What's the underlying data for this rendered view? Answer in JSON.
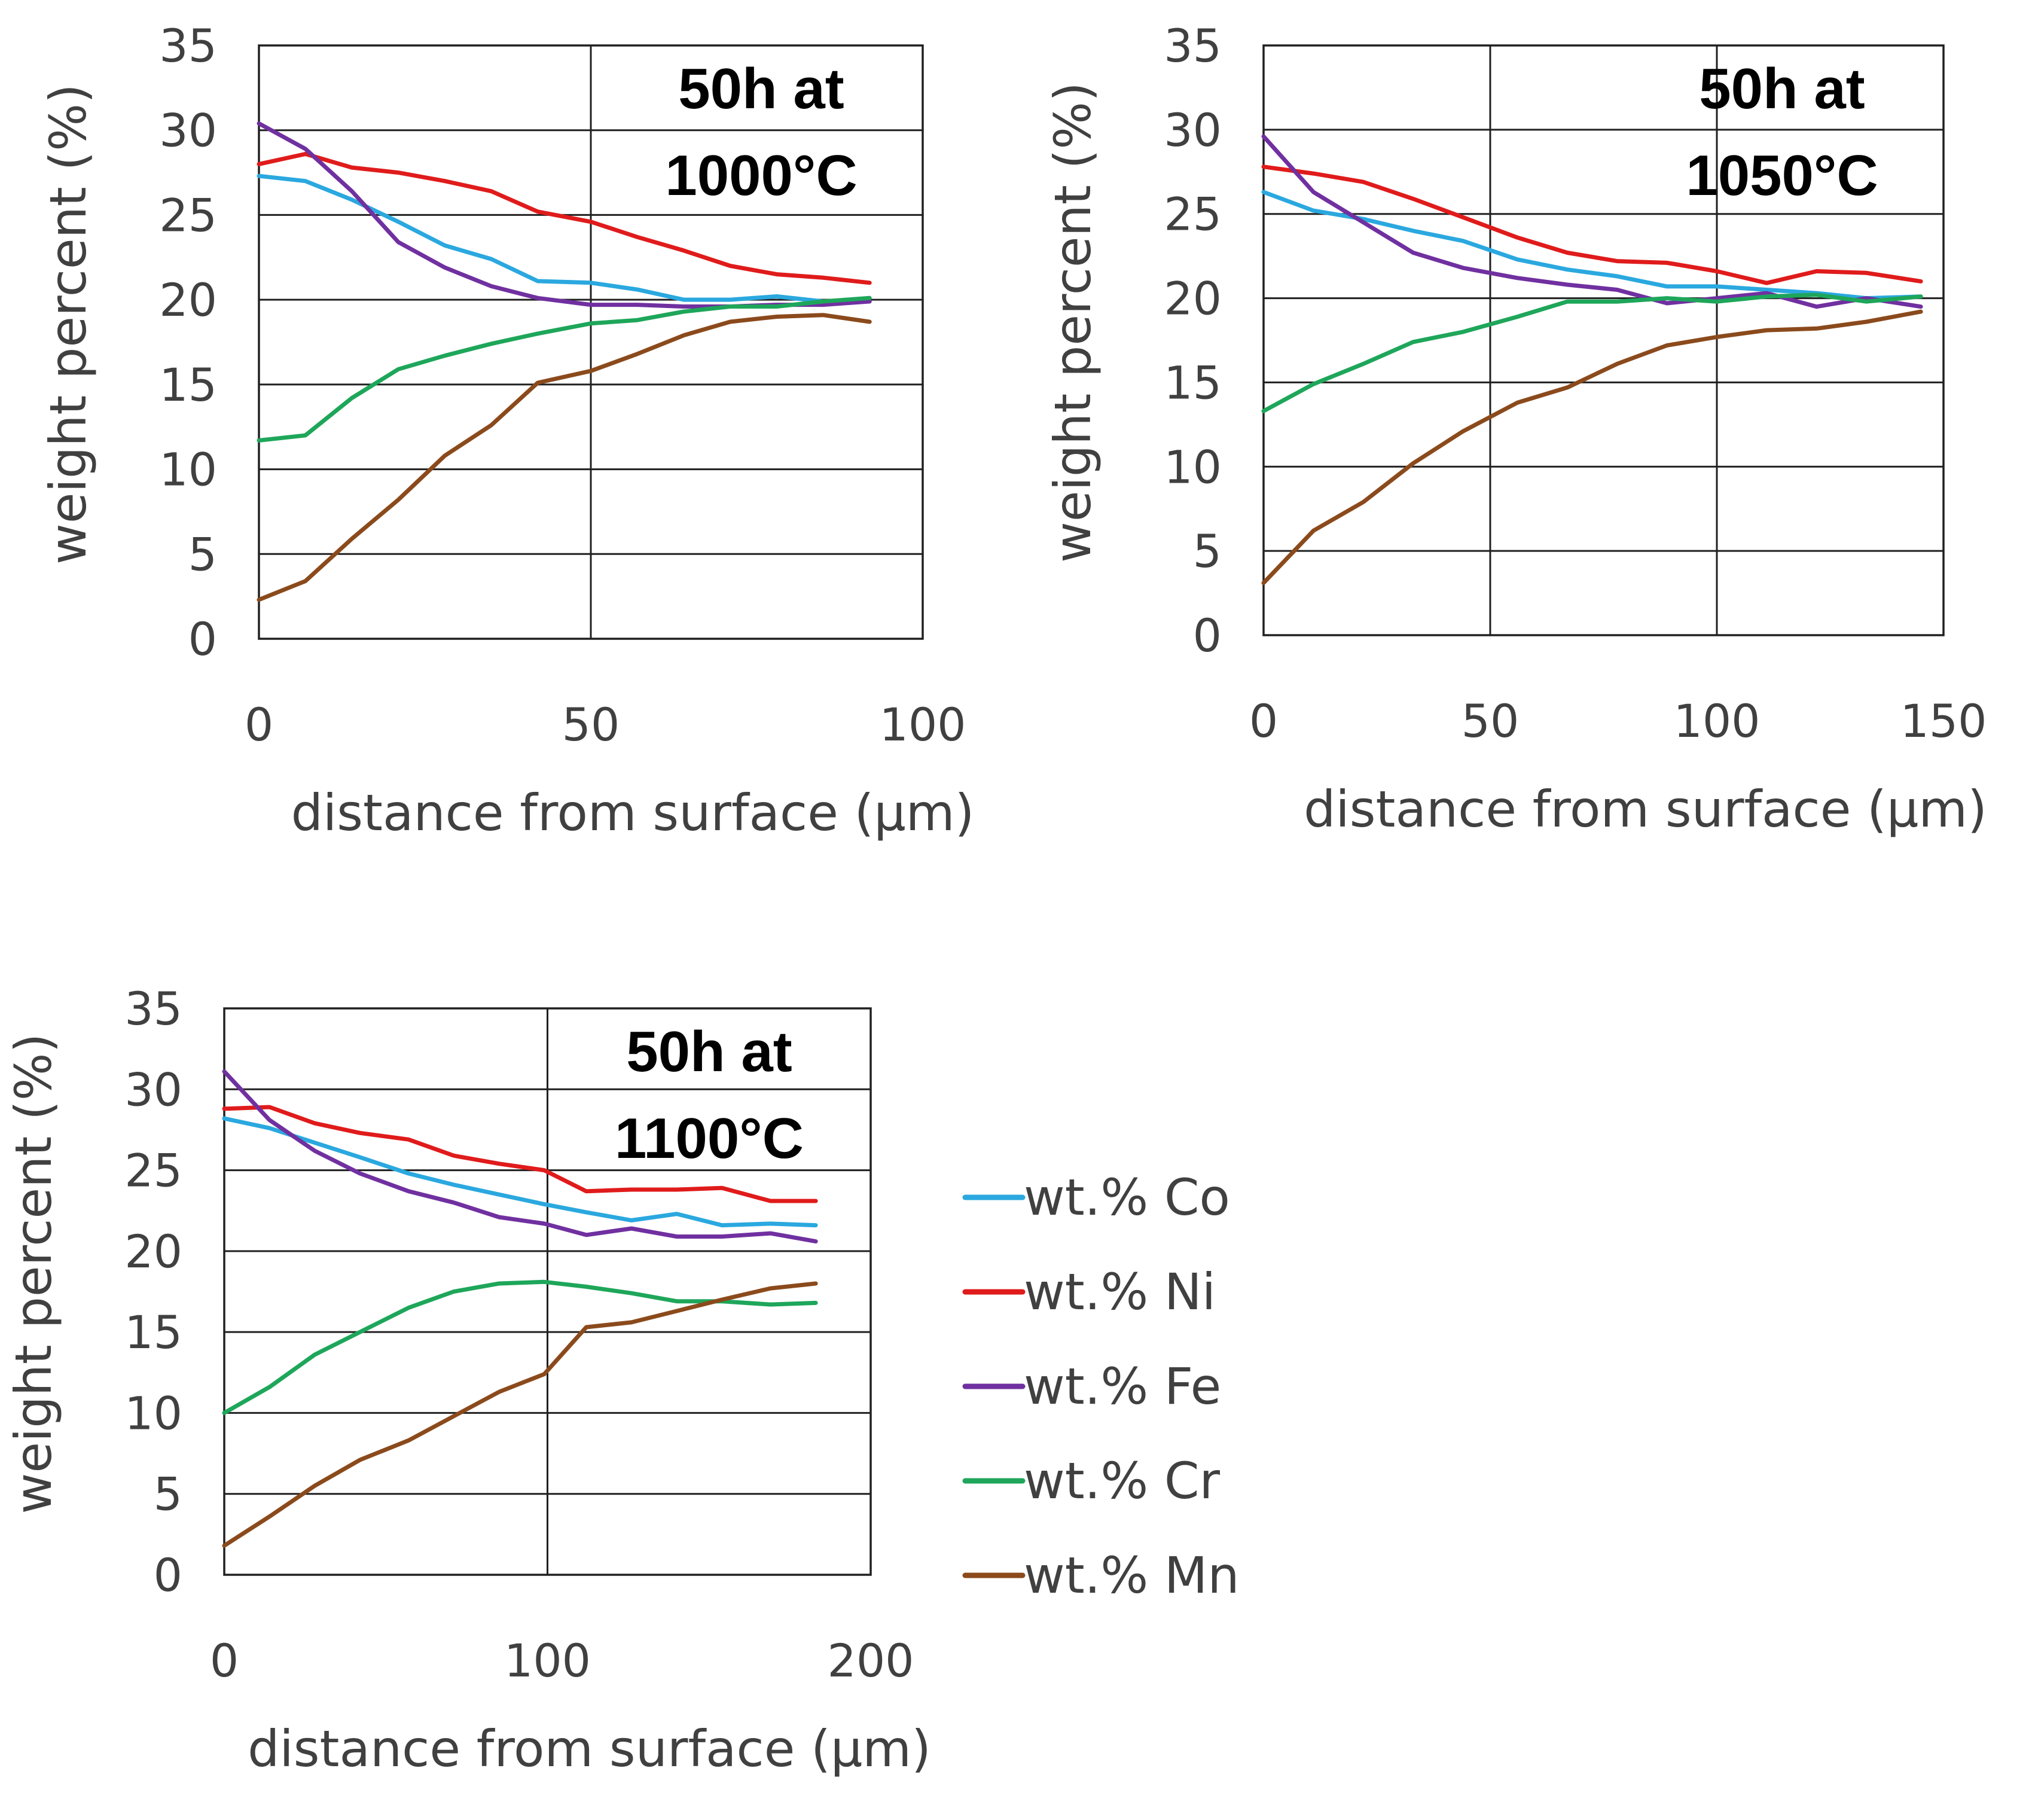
{
  "chart_data": [
    {
      "type": "line",
      "title": "50h at 1000°C",
      "annotation_lines": [
        "50h at",
        "1000°C"
      ],
      "xlabel": "distance from surface (µm)",
      "ylabel": "weight percent (%)",
      "xlim": [
        0,
        100
      ],
      "ylim": [
        0,
        35
      ],
      "xticks": [
        0,
        50,
        100
      ],
      "yticks": [
        0,
        5,
        10,
        15,
        20,
        25,
        30,
        35
      ],
      "grid": true,
      "x": [
        0,
        7,
        14,
        21,
        28,
        35,
        42,
        50,
        57,
        64,
        71,
        78,
        85,
        92
      ],
      "series": [
        {
          "name": "wt.% Co",
          "values": [
            27.3,
            27.0,
            25.9,
            24.6,
            23.2,
            22.4,
            21.1,
            21.0,
            20.6,
            20.0,
            20.0,
            20.2,
            19.9,
            19.9
          ]
        },
        {
          "name": "wt.% Ni",
          "values": [
            28.0,
            28.6,
            27.8,
            27.5,
            27.0,
            26.4,
            25.2,
            24.6,
            23.7,
            22.9,
            22.0,
            21.5,
            21.3,
            21.0
          ]
        },
        {
          "name": "wt.% Fe",
          "values": [
            30.4,
            28.9,
            26.4,
            23.4,
            21.9,
            20.8,
            20.1,
            19.7,
            19.7,
            19.6,
            19.6,
            19.7,
            19.7,
            19.9
          ]
        },
        {
          "name": "wt.% Cr",
          "values": [
            11.7,
            12.0,
            14.2,
            15.9,
            16.7,
            17.4,
            18.0,
            18.6,
            18.8,
            19.3,
            19.6,
            19.6,
            19.9,
            20.1
          ]
        },
        {
          "name": "wt.% Mn",
          "values": [
            2.3,
            3.4,
            5.9,
            8.2,
            10.8,
            12.6,
            15.1,
            15.8,
            16.8,
            17.9,
            18.7,
            19.0,
            19.1,
            18.7
          ]
        }
      ]
    },
    {
      "type": "line",
      "title": "50h at 1050°C",
      "annotation_lines": [
        "50h at",
        "1050°C"
      ],
      "xlabel": "distance from surface (µm)",
      "ylabel": "weight percent (%)",
      "xlim": [
        0,
        150
      ],
      "ylim": [
        0,
        35
      ],
      "xticks": [
        0,
        50,
        100,
        150
      ],
      "yticks": [
        0,
        5,
        10,
        15,
        20,
        25,
        30,
        35
      ],
      "grid": true,
      "x": [
        0,
        11,
        22,
        33,
        44,
        56,
        67,
        78,
        89,
        100,
        111,
        122,
        133,
        145
      ],
      "series": [
        {
          "name": "wt.% Co",
          "values": [
            26.3,
            25.2,
            24.7,
            24.0,
            23.4,
            22.3,
            21.7,
            21.3,
            20.7,
            20.7,
            20.5,
            20.3,
            20.0,
            20.1
          ]
        },
        {
          "name": "wt.% Ni",
          "values": [
            27.8,
            27.4,
            26.9,
            25.9,
            24.8,
            23.6,
            22.7,
            22.2,
            22.1,
            21.6,
            20.9,
            21.6,
            21.5,
            21.0
          ]
        },
        {
          "name": "wt.% Fe",
          "values": [
            29.6,
            26.3,
            24.5,
            22.7,
            21.8,
            21.2,
            20.8,
            20.5,
            19.7,
            20.0,
            20.3,
            19.5,
            20.0,
            19.5
          ]
        },
        {
          "name": "wt.% Cr",
          "values": [
            13.3,
            14.9,
            16.1,
            17.4,
            18.0,
            18.9,
            19.8,
            19.8,
            20.0,
            19.8,
            20.1,
            20.2,
            19.8,
            20.1
          ]
        },
        {
          "name": "wt.% Mn",
          "values": [
            3.1,
            6.2,
            7.9,
            10.2,
            12.1,
            13.8,
            14.7,
            16.1,
            17.2,
            17.7,
            18.1,
            18.2,
            18.6,
            19.2
          ]
        }
      ]
    },
    {
      "type": "line",
      "title": "50h at 1100°C",
      "annotation_lines": [
        "50h at",
        "1100°C"
      ],
      "xlabel": "distance from surface (µm)",
      "ylabel": "weight percent (%)",
      "xlim": [
        0,
        200
      ],
      "ylim": [
        0,
        35
      ],
      "xticks": [
        0,
        100,
        200
      ],
      "yticks": [
        0,
        5,
        10,
        15,
        20,
        25,
        30,
        35
      ],
      "grid": true,
      "x": [
        0,
        14,
        28,
        42,
        57,
        71,
        85,
        99,
        112,
        126,
        140,
        154,
        169,
        183
      ],
      "series": [
        {
          "name": "wt.% Co",
          "values": [
            28.2,
            27.6,
            26.7,
            25.8,
            24.8,
            24.1,
            23.5,
            22.9,
            22.4,
            21.9,
            22.3,
            21.6,
            21.7,
            21.6
          ]
        },
        {
          "name": "wt.% Ni",
          "values": [
            28.8,
            28.9,
            27.9,
            27.3,
            26.9,
            25.9,
            25.4,
            25.0,
            23.7,
            23.8,
            23.8,
            23.9,
            23.1,
            23.1
          ]
        },
        {
          "name": "wt.% Fe",
          "values": [
            31.1,
            28.1,
            26.2,
            24.8,
            23.7,
            23.0,
            22.1,
            21.7,
            21.0,
            21.4,
            20.9,
            20.9,
            21.1,
            20.6
          ]
        },
        {
          "name": "wt.% Cr",
          "values": [
            10.0,
            11.6,
            13.6,
            15.0,
            16.5,
            17.5,
            18.0,
            18.1,
            17.8,
            17.4,
            16.9,
            16.9,
            16.7,
            16.8
          ]
        },
        {
          "name": "wt.% Mn",
          "values": [
            1.8,
            3.6,
            5.5,
            7.1,
            8.3,
            9.8,
            11.3,
            12.4,
            15.3,
            15.6,
            16.3,
            17.0,
            17.7,
            18.0
          ]
        }
      ]
    }
  ],
  "legend": {
    "position": "right-of-bottom-chart",
    "items": [
      {
        "label": "wt.% Co",
        "color": "#2aa8df"
      },
      {
        "label": "wt.% Ni",
        "color": "#e01b1b"
      },
      {
        "label": "wt.% Fe",
        "color": "#7030a0"
      },
      {
        "label": "wt.% Cr",
        "color": "#1ea65a"
      },
      {
        "label": "wt.% Mn",
        "color": "#8b4a1c"
      }
    ]
  },
  "colors": {
    "wt.% Co": "#2aa8df",
    "wt.% Ni": "#e01b1b",
    "wt.% Fe": "#7030a0",
    "wt.% Cr": "#1ea65a",
    "wt.% Mn": "#8b4a1c"
  }
}
